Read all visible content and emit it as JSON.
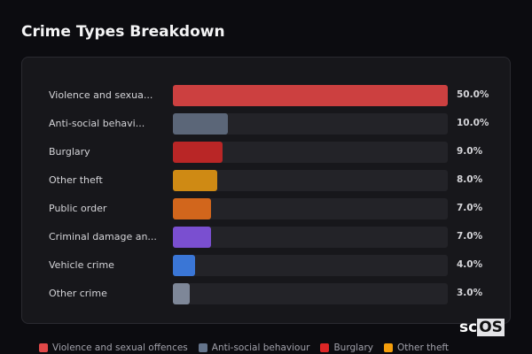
{
  "chart_data": {
    "type": "bar",
    "orientation": "horizontal",
    "title": "Crime Types Breakdown",
    "categories": [
      "Violence and sexua...",
      "Anti-social behavi...",
      "Burglary",
      "Other theft",
      "Public order",
      "Criminal damage an...",
      "Vehicle crime",
      "Other crime"
    ],
    "values": [
      50.0,
      10.0,
      9.0,
      8.0,
      7.0,
      7.0,
      4.0,
      3.0
    ],
    "value_labels": [
      "50.0%",
      "10.0%",
      "9.0%",
      "8.0%",
      "7.0%",
      "7.0%",
      "4.0%",
      "3.0%"
    ],
    "colors": [
      "#cc4040",
      "#5b6678",
      "#b92626",
      "#cf8a14",
      "#d2661c",
      "#7a4fd0",
      "#3a76d6",
      "#7e8798"
    ],
    "xlim": [
      0,
      50
    ],
    "legend": [
      {
        "label": "Violence and sexual offences",
        "color": "#e04848"
      },
      {
        "label": "Anti-social behaviour",
        "color": "#64748b"
      },
      {
        "label": "Burglary",
        "color": "#dc2626"
      },
      {
        "label": "Other theft",
        "color": "#f59e0b"
      }
    ],
    "legend_placement": "bottom"
  },
  "logo": {
    "text_a": "sc",
    "text_b": "OS"
  }
}
